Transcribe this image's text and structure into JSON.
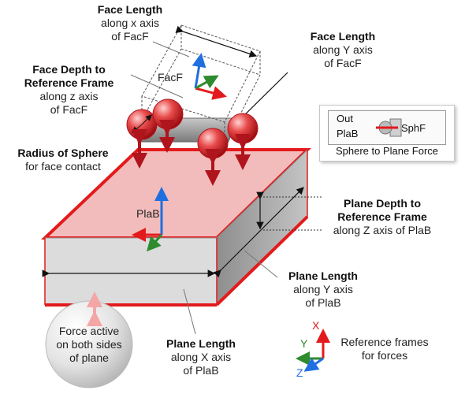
{
  "labels": {
    "face_length_x": {
      "title": "Face Length",
      "lines": [
        "along x axis",
        "of FacF"
      ]
    },
    "face_length_y": {
      "title": "Face Length",
      "lines": [
        "along Y axis",
        "of FacF"
      ]
    },
    "face_depth": {
      "title_lines": [
        "Face Depth to",
        "Reference Frame"
      ],
      "lines": [
        "along z axis",
        "of FacF"
      ]
    },
    "radius": {
      "title": "Radius of Sphere",
      "lines": [
        "for face contact"
      ]
    },
    "plane_depth": {
      "title_lines": [
        "Plane Depth to",
        "Reference Frame"
      ],
      "lines": [
        "along Z axis of PlaB"
      ]
    },
    "plane_length_y": {
      "title": "Plane Length",
      "lines": [
        "along Y axis",
        "of PlaB"
      ]
    },
    "plane_length_x": {
      "title": "Plane Length",
      "lines": [
        "along X axis",
        "of PlaB"
      ]
    },
    "force_active": {
      "lines": [
        "Force active",
        "on both sides",
        "of plane"
      ]
    },
    "ref_frames": {
      "lines": [
        "Reference frames",
        "for forces"
      ]
    }
  },
  "frames": {
    "facf": "FacF",
    "plab": "PlaB"
  },
  "block": {
    "port_out": "Out",
    "port_plab": "PlaB",
    "name": "SphF",
    "caption": "Sphere to Plane Force"
  },
  "axes": {
    "x": "X",
    "y": "Y",
    "z": "Z"
  },
  "colors": {
    "red": "#e31a1c",
    "green": "#2e8b2e",
    "blue": "#1f6fe0",
    "dark_red": "#b0141c",
    "plane_top": "#f0b9b9"
  }
}
